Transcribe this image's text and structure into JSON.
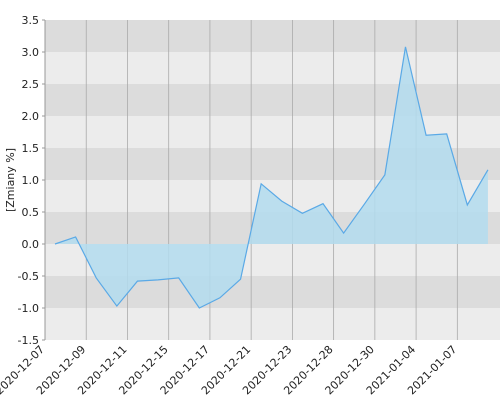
{
  "chart_data": {
    "type": "area",
    "y_label": "[Zmiany %]",
    "categories": [
      "2020-12-07",
      null,
      "2020-12-09",
      null,
      "2020-12-11",
      null,
      "2020-12-15",
      null,
      "2020-12-17",
      null,
      "2020-12-21",
      null,
      "2020-12-23",
      null,
      "2020-12-28",
      null,
      "2020-12-30",
      null,
      "2021-01-04",
      null,
      "2021-01-07",
      null
    ],
    "series": [
      {
        "color": "#5aa9e6",
        "fill": "#b3dcee",
        "values": [
          0.0,
          0.11,
          -0.53,
          -0.97,
          -0.58,
          -0.56,
          -0.53,
          -1.0,
          -0.84,
          -0.55,
          0.94,
          0.67,
          0.48,
          0.63,
          0.17,
          0.62,
          1.08,
          3.08,
          1.7,
          1.72,
          0.61,
          1.16
        ]
      }
    ],
    "ylim": [
      -1.5,
      3.5
    ],
    "yticks": [
      -1.5,
      {
        "value": -1,
        "label": "-1.0"
      },
      -0.5,
      {
        "value": 0,
        "label": "0.0"
      },
      0.5,
      {
        "value": 1,
        "label": "1.0"
      },
      1.5,
      {
        "value": 2,
        "label": "2.0"
      },
      2.5,
      {
        "value": 3,
        "label": "3.0"
      },
      3.5
    ],
    "bands": true,
    "band_colors": [
      "#ececec",
      "#dcdcdc"
    ]
  }
}
